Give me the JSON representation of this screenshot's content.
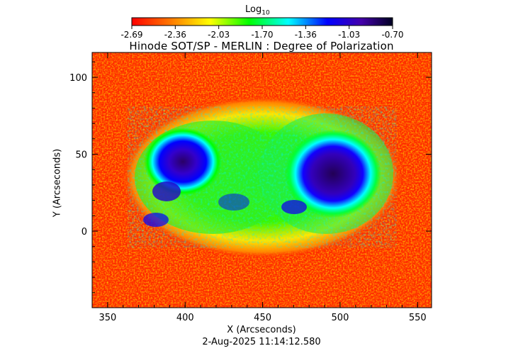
{
  "colorbar": {
    "title_main": "Log",
    "title_sub": "10",
    "ticks": [
      "-2.69",
      "-2.36",
      "-2.03",
      "-1.70",
      "-1.36",
      "-1.03",
      "-0.70"
    ],
    "colors": [
      "#ff0000",
      "#ff8800",
      "#ffff00",
      "#00ff00",
      "#00ffff",
      "#0000ff",
      "#000033"
    ]
  },
  "image": {
    "title": "Hinode SOT/SP - MERLIN : Degree of Polarization",
    "xlabel": "X (Arcseconds)",
    "ylabel": "Y (Arcseconds)",
    "timestamp": "2-Aug-2025 11:14:12.580",
    "x_ticks": [
      "350",
      "400",
      "450",
      "500",
      "550"
    ],
    "y_ticks": [
      "100",
      "50",
      "0"
    ]
  }
}
